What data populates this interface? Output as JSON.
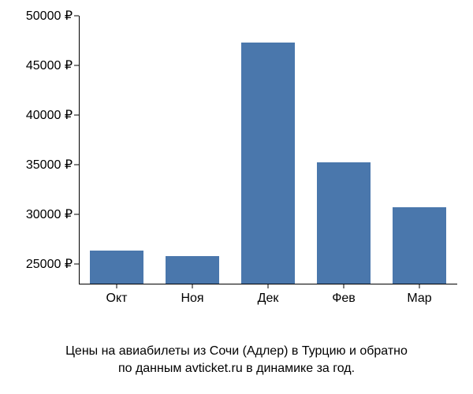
{
  "chart": {
    "type": "bar",
    "categories": [
      "Окт",
      "Ноя",
      "Дек",
      "Фев",
      "Мар"
    ],
    "values": [
      26300,
      25800,
      47300,
      35200,
      30700
    ],
    "bar_color": "#4a77ac",
    "background_color": "#ffffff",
    "axis_color": "#000000",
    "text_color": "#000000",
    "ylim": [
      23000,
      50000
    ],
    "yticks": [
      25000,
      30000,
      35000,
      40000,
      45000,
      50000
    ],
    "ytick_labels": [
      "25000 ₽",
      "30000 ₽",
      "35000 ₽",
      "40000 ₽",
      "45000 ₽",
      "50000 ₽"
    ],
    "bar_width_ratio": 0.7,
    "label_fontsize": 16,
    "caption_fontsize": 16
  },
  "caption": {
    "line1": "Цены на авиабилеты из Сочи (Адлер) в Турцию и обратно",
    "line2": "по данным avticket.ru в динамике за год."
  }
}
